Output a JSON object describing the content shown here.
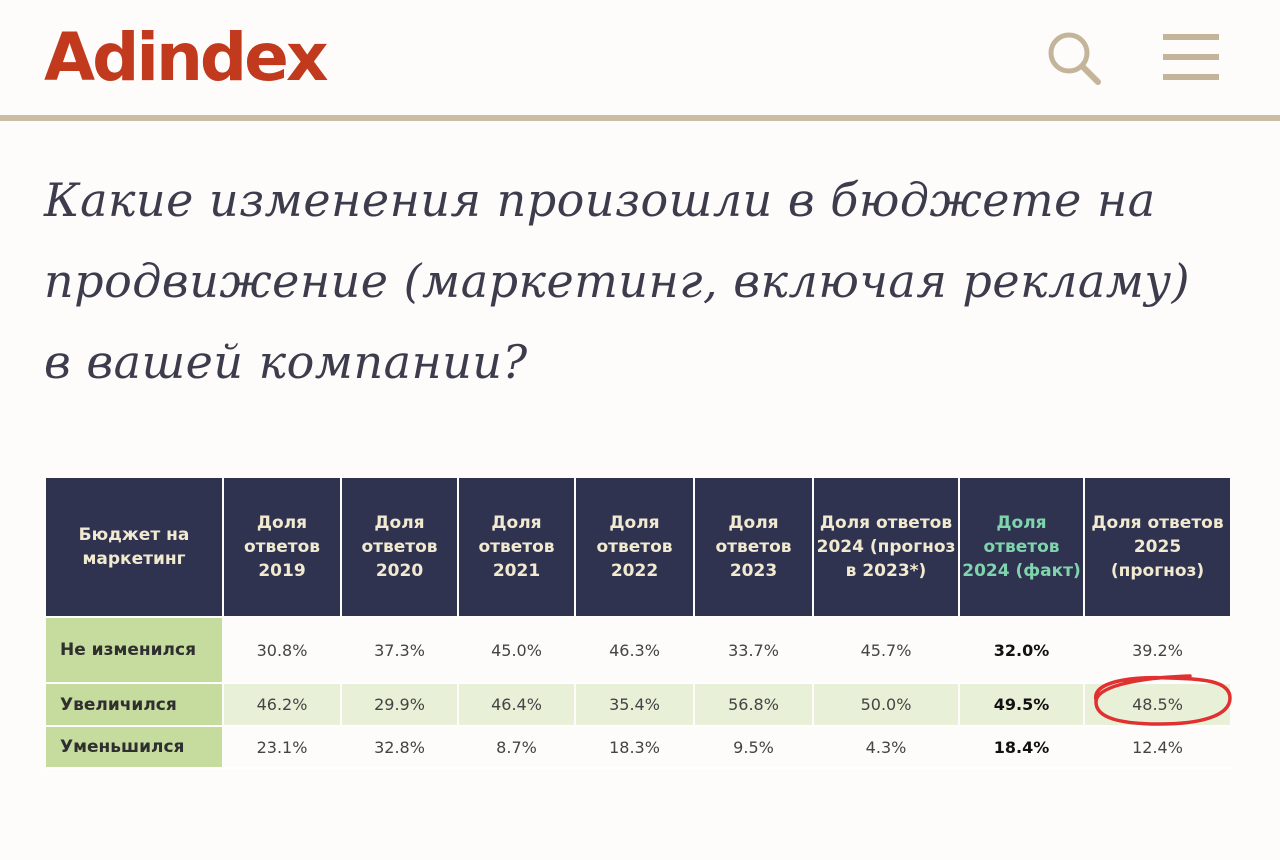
{
  "header": {
    "logo": "Adindex",
    "search_icon": "search-icon",
    "menu_icon": "hamburger-menu-icon"
  },
  "article": {
    "title": "Какие изменения произошли в бюджете на продвижение (маркетинг, включая рекламу) в вашей компании?"
  },
  "colors": {
    "brand": "#c23a1d",
    "header_bg": "#2f3350",
    "row_label_bg": "#c6dc9f",
    "highlight_circle": "#e03030"
  },
  "table": {
    "columns": [
      "Бюджет на маркетинг",
      "Доля ответов 2019",
      "Доля ответов 2020",
      "Доля ответов 2021",
      "Доля ответов 2022",
      "Доля ответов 2023",
      "Доля ответов 2024 (прогноз в 2023*)",
      "Доля ответов 2024 (факт)",
      "Доля ответов 2025 (прогноз)"
    ],
    "rows": [
      {
        "label": "Не изменился",
        "values": [
          "30.8%",
          "37.3%",
          "45.0%",
          "46.3%",
          "33.7%",
          "45.7%",
          "32.0%",
          "39.2%"
        ]
      },
      {
        "label": "Увеличился",
        "values": [
          "46.2%",
          "29.9%",
          "46.4%",
          "35.4%",
          "56.8%",
          "50.0%",
          "49.5%",
          "48.5%"
        ]
      },
      {
        "label": "Уменьшился",
        "values": [
          "23.1%",
          "32.8%",
          "8.7%",
          "18.3%",
          "9.5%",
          "4.3%",
          "18.4%",
          "12.4%"
        ]
      }
    ]
  }
}
